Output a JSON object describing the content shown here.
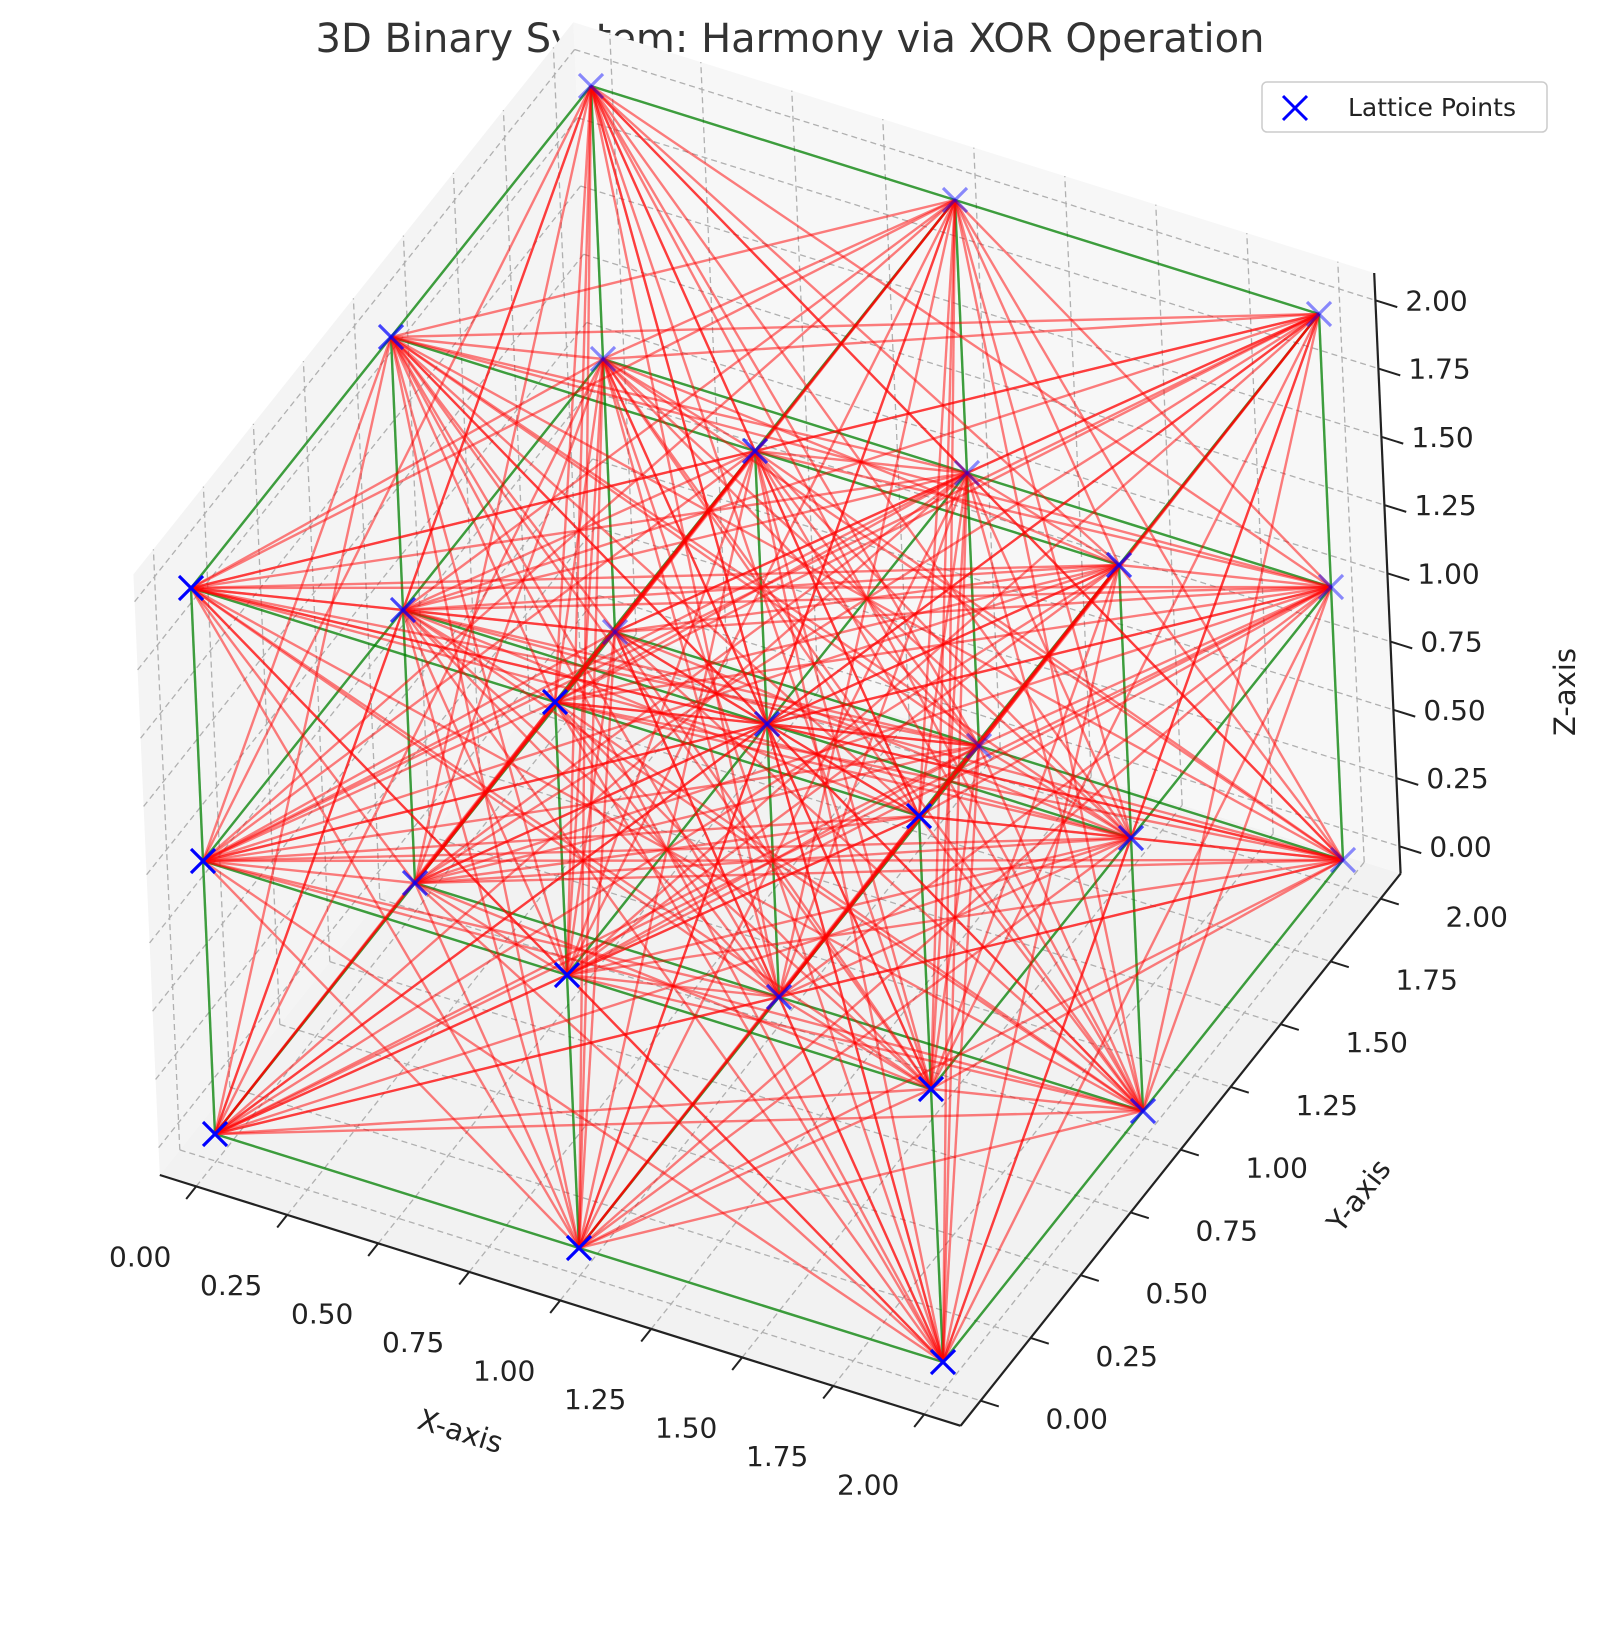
{
  "chart_data": {
    "type": "scatter",
    "title": "3D Binary System: Harmony via XOR Operation",
    "xlabel": "X-axis",
    "ylabel": "Y-axis",
    "zlabel": "Z-axis",
    "xlim": [
      0,
      2
    ],
    "ylim": [
      0,
      2
    ],
    "zlim": [
      0,
      2
    ],
    "xticks": [
      "0.00",
      "0.25",
      "0.50",
      "0.75",
      "1.00",
      "1.25",
      "1.50",
      "1.75",
      "2.00"
    ],
    "yticks": [
      "0.00",
      "0.25",
      "0.50",
      "0.75",
      "1.00",
      "1.25",
      "1.50",
      "1.75",
      "2.00"
    ],
    "zticks": [
      "0.00",
      "0.25",
      "0.50",
      "0.75",
      "1.00",
      "1.25",
      "1.50",
      "1.75",
      "2.00"
    ],
    "grid": true,
    "legend": {
      "placement": "top-right",
      "entries": [
        "Lattice Points"
      ]
    },
    "series": [
      {
        "name": "Lattice Points",
        "marker": "x",
        "color": "#0000ff",
        "points": [
          [
            0,
            0,
            0
          ],
          [
            0,
            0,
            1
          ],
          [
            0,
            0,
            2
          ],
          [
            0,
            1,
            0
          ],
          [
            0,
            1,
            1
          ],
          [
            0,
            1,
            2
          ],
          [
            0,
            2,
            0
          ],
          [
            0,
            2,
            1
          ],
          [
            0,
            2,
            2
          ],
          [
            1,
            0,
            0
          ],
          [
            1,
            0,
            1
          ],
          [
            1,
            0,
            2
          ],
          [
            1,
            1,
            0
          ],
          [
            1,
            1,
            1
          ],
          [
            1,
            1,
            2
          ],
          [
            1,
            2,
            0
          ],
          [
            1,
            2,
            1
          ],
          [
            1,
            2,
            2
          ],
          [
            2,
            0,
            0
          ],
          [
            2,
            0,
            1
          ],
          [
            2,
            0,
            2
          ],
          [
            2,
            1,
            0
          ],
          [
            2,
            1,
            1
          ],
          [
            2,
            1,
            2
          ],
          [
            2,
            2,
            0
          ],
          [
            2,
            2,
            1
          ],
          [
            2,
            2,
            2
          ]
        ]
      }
    ],
    "connections": {
      "description": "Every pair of lattice points is joined by a line",
      "colors": {
        "axis_aligned": "#008000",
        "other": "#ff0000"
      }
    }
  }
}
